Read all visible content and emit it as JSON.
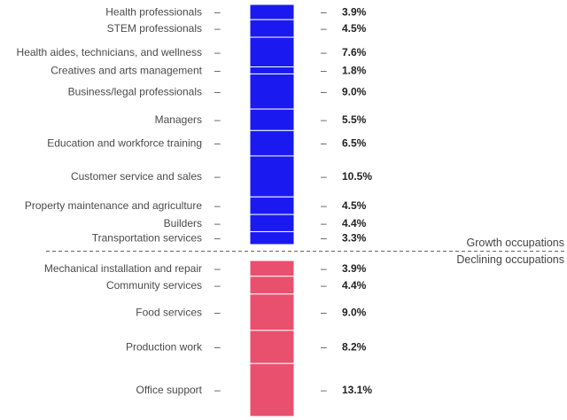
{
  "chart_data": {
    "type": "bar",
    "orientation": "stacked-vertical",
    "unit": "%",
    "groups": [
      {
        "name": "Growth occupations",
        "color": "#1a1af0",
        "categories": [
          "Health professionals",
          "STEM professionals",
          "Health aides, technicians, and wellness",
          "Creatives and arts management",
          "Business/legal professionals",
          "Managers",
          "Education and workforce training",
          "Customer service and sales",
          "Property maintenance and agriculture",
          "Builders",
          "Transportation services"
        ],
        "values": [
          3.9,
          4.5,
          7.6,
          1.8,
          9.0,
          5.5,
          6.5,
          10.5,
          4.5,
          4.4,
          3.3
        ],
        "labels": [
          "3.9%",
          "4.5%",
          "7.6%",
          "1.8%",
          "9.0%",
          "5.5%",
          "6.5%",
          "10.5%",
          "4.5%",
          "4.4%",
          "3.3%"
        ]
      },
      {
        "name": "Declining occupations",
        "color": "#e8506e",
        "categories": [
          "Mechanical installation and repair",
          "Community services",
          "Food services",
          "Production work",
          "Office support"
        ],
        "values": [
          3.9,
          4.4,
          9.0,
          8.2,
          13.1
        ],
        "labels": [
          "3.9%",
          "4.4%",
          "9.0%",
          "8.2%",
          "13.1%"
        ]
      }
    ],
    "dash": "–"
  }
}
